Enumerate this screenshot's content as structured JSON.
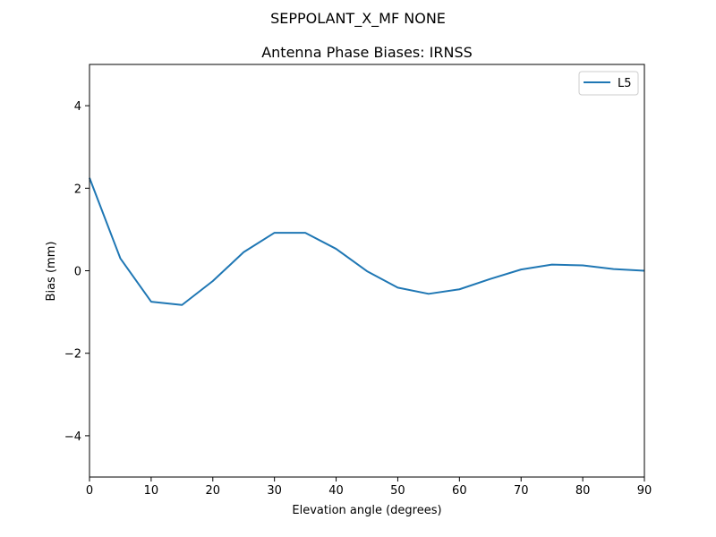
{
  "chart_data": {
    "type": "line",
    "suptitle": "SEPPOLANT_X_MF  NONE",
    "title": "Antenna Phase Biases: IRNSS",
    "xlabel": "Elevation angle (degrees)",
    "ylabel": "Bias (mm)",
    "xlim": [
      0,
      90
    ],
    "ylim": [
      -5,
      5
    ],
    "xticks": [
      0,
      10,
      20,
      30,
      40,
      50,
      60,
      70,
      80,
      90
    ],
    "yticks": [
      -4,
      -2,
      0,
      2,
      4
    ],
    "ytick_labels": [
      "−4",
      "−2",
      "0",
      "2",
      "4"
    ],
    "grid": false,
    "legend_position": "top-right",
    "series": [
      {
        "name": "L5",
        "color": "#1f77b4",
        "x": [
          0,
          5,
          10,
          15,
          20,
          25,
          30,
          35,
          40,
          45,
          50,
          55,
          60,
          65,
          70,
          75,
          80,
          85,
          90
        ],
        "y": [
          2.25,
          0.3,
          -0.75,
          -0.83,
          -0.25,
          0.45,
          0.92,
          0.92,
          0.53,
          -0.01,
          -0.41,
          -0.56,
          -0.45,
          -0.2,
          0.03,
          0.15,
          0.13,
          0.04,
          0.0
        ]
      }
    ]
  }
}
